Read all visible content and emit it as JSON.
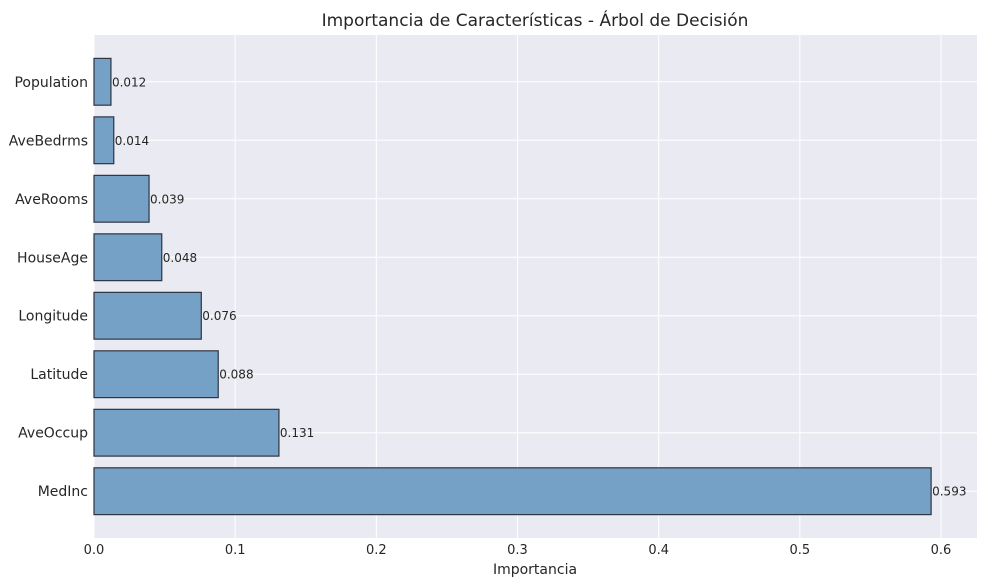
{
  "chart_data": {
    "type": "bar",
    "orientation": "horizontal",
    "title": "Importancia de Características - Árbol de Decisión",
    "xlabel": "Importancia",
    "ylabel": "",
    "categories": [
      "MedInc",
      "AveOccup",
      "Latitude",
      "Longitude",
      "HouseAge",
      "AveRooms",
      "AveBedrms",
      "Population"
    ],
    "values": [
      0.593,
      0.131,
      0.088,
      0.076,
      0.048,
      0.039,
      0.014,
      0.012
    ],
    "data_labels": [
      "0.593",
      "0.131",
      "0.088",
      "0.076",
      "0.048",
      "0.039",
      "0.014",
      "0.012"
    ],
    "xticks": [
      0.0,
      0.1,
      0.2,
      0.3,
      0.4,
      0.5,
      0.6
    ],
    "xtick_labels": [
      "0.0",
      "0.1",
      "0.2",
      "0.3",
      "0.4",
      "0.5",
      "0.6"
    ],
    "xlim": [
      0,
      0.6255
    ],
    "grid": true,
    "colors": {
      "bar": "#75a1c7",
      "edge": "#2e3440",
      "background": "#eaeaf2",
      "grid": "#ffffff"
    }
  }
}
